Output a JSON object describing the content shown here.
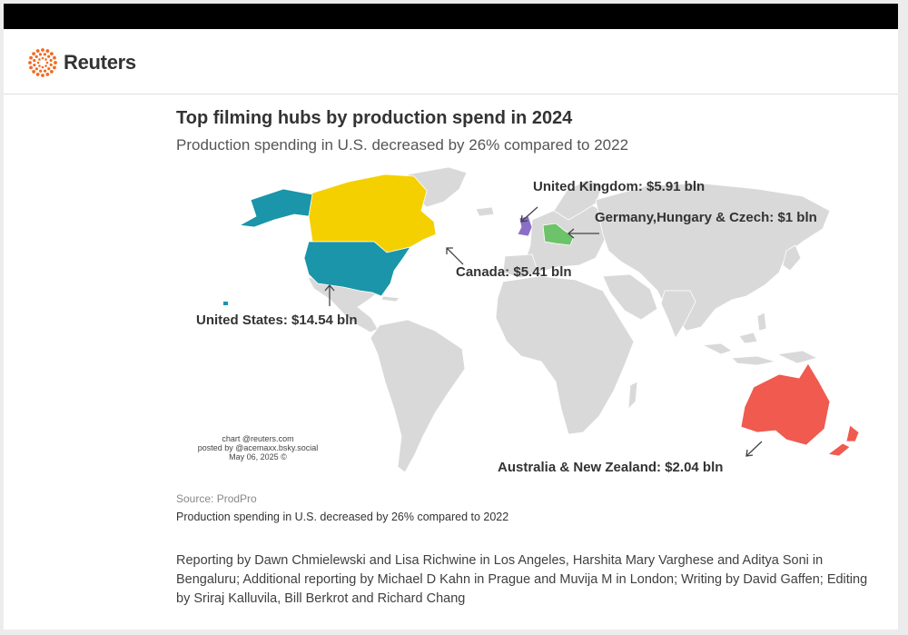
{
  "brand": {
    "name": "Reuters",
    "logo_icon": "reuters-dot-ring-icon",
    "color": "#f26a21"
  },
  "chart": {
    "title": "Top filming hubs by production spend in 2024",
    "subtitle": "Production spending in U.S. decreased by 26% compared to 2022",
    "credit": [
      "chart @reuters.com",
      "posted by @acemaxx.bsky.social",
      "May 06, 2025 ©"
    ]
  },
  "chart_data": {
    "type": "choropleth",
    "unit": "bln",
    "regions": [
      {
        "name": "United States",
        "label": "United States: $14.54 bln",
        "value": 14.54,
        "color": "#1a95a9"
      },
      {
        "name": "United Kingdom",
        "label": "United Kingdom: $5.91 bln",
        "value": 5.91,
        "color": "#8a6fc8"
      },
      {
        "name": "Canada",
        "label": "Canada: $5.41 bln",
        "value": 5.41,
        "color": "#f5d000"
      },
      {
        "name": "Australia & New Zealand",
        "label": "Australia & New Zealand: $2.04 bln",
        "value": 2.04,
        "color": "#f05a4f"
      },
      {
        "name": "Germany,Hungary & Czech",
        "label": "Germany,Hungary & Czech: $1 bln",
        "value": 1,
        "color": "#6cc36a"
      }
    ],
    "base_land_color": "#d9d9d9"
  },
  "footer": {
    "source": "Source: ProdPro",
    "note": "Production spending in U.S. decreased by 26% compared to 2022",
    "reporting": "Reporting by Dawn Chmielewski and Lisa Richwine in Los Angeles, Harshita Mary Varghese and Aditya Soni in Bengaluru; Additional reporting by Michael D Kahn in Prague and Muvija M in London; Writing by David Gaffen; Editing by Sriraj Kalluvila, Bill Berkrot and Richard Chang"
  }
}
